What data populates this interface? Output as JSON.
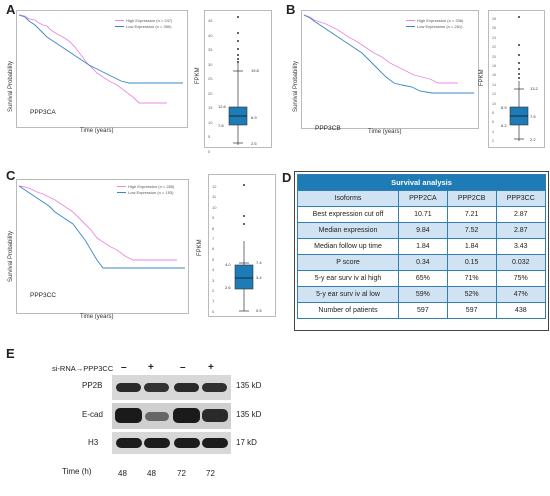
{
  "panels": {
    "A": {
      "letter": "A",
      "gene": "PPP3CA",
      "legend_high": "High Expression (n = 247)",
      "legend_low": "Low Expression (n = 350)",
      "ylabel": "Survival Probability",
      "xlabel": "Time (years)",
      "fpkm": "FPKM",
      "ticks": [
        "45",
        "40",
        "35",
        "30",
        "25",
        "20",
        "15",
        "10",
        "5",
        "0"
      ],
      "stats": [
        "19.8",
        "12.6",
        "7.8",
        "6.9",
        "2.5"
      ]
    },
    "B": {
      "letter": "B",
      "gene": "PPP3CB",
      "legend_high": "High Expression (n = 336)",
      "legend_low": "Low Expression (n = 261)",
      "ylabel": "Survival Probability",
      "xlabel": "Time (years)",
      "fpkm": "FPKM",
      "ticks": [
        "28",
        "26",
        "24",
        "22",
        "20",
        "18",
        "16",
        "14",
        "12",
        "10",
        "8",
        "6",
        "4",
        "2"
      ],
      "stats": [
        "13.2",
        "8.9",
        "7.5",
        "6.2",
        "2.2"
      ]
    },
    "C": {
      "letter": "C",
      "gene": "PPP3CC",
      "legend_high": "High Expression (n = 285)",
      "legend_low": "Low Expression (n = 153)",
      "ylabel": "Survival Probability",
      "xlabel": "Time (years)",
      "fpkm": "FPKM",
      "ticks": [
        "12",
        "11",
        "10",
        "9",
        "8",
        "7",
        "6",
        "5",
        "4",
        "3",
        "2",
        "1",
        "0"
      ],
      "stats": [
        "7.4",
        "4.0",
        "3.4",
        "2.6",
        "0.5"
      ]
    }
  },
  "panel_D": {
    "letter": "D",
    "title": "Survival analysis",
    "header": [
      "Isoforms",
      "PPP2CA",
      "PPP2CB",
      "PPP3CC"
    ],
    "rows": [
      [
        "Best expression cut off",
        "10.71",
        "7.21",
        "2.87"
      ],
      [
        "Median expression",
        "9.84",
        "7.52",
        "2.87"
      ],
      [
        "Median follow up time",
        "1.84",
        "1.84",
        "3.43"
      ],
      [
        "P score",
        "0.34",
        "0.15",
        "0.032"
      ],
      [
        "5-y ear surv iv al high",
        "65%",
        "71%",
        "75%"
      ],
      [
        "5-y ear surv iv al low",
        "59%",
        "52%",
        "47%"
      ],
      [
        "Number of patients",
        "597",
        "597",
        "438"
      ]
    ]
  },
  "panel_E": {
    "letter": "E",
    "sirna_label": "si-RNA→PPP3CC",
    "treatment": [
      "–",
      "+",
      "–",
      "+"
    ],
    "blots": [
      {
        "protein": "PP2B",
        "size": "135 kD"
      },
      {
        "protein": "E-cad",
        "size": "135 kD"
      },
      {
        "protein": "H3",
        "size": "17 kD"
      }
    ],
    "time_label": "Time (h)",
    "times": [
      "48",
      "48",
      "72",
      "72"
    ]
  },
  "colors": {
    "high": "#e98be0",
    "low": "#3a86c4",
    "box": "#1f7bb6",
    "header": "#1f7bb6",
    "alt_row": "#cfe3f2"
  }
}
